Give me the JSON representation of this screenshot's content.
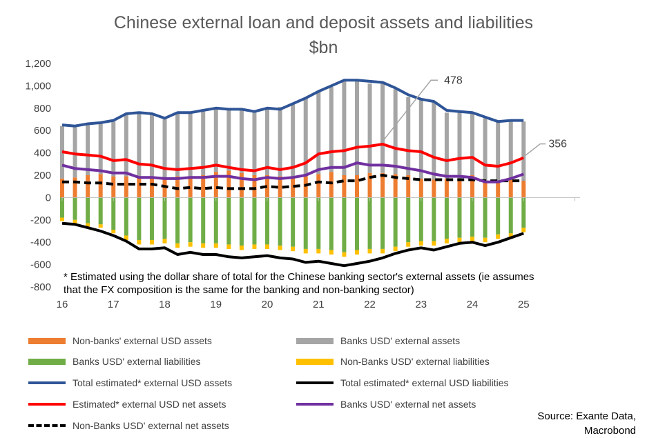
{
  "chart_data": {
    "type": "bar",
    "title": "Chinese external loan and deposit assets and liabilities",
    "subtitle": "$bn",
    "ylim": [
      -800,
      1200
    ],
    "yticks": [
      1200,
      1000,
      800,
      600,
      400,
      200,
      0,
      -200,
      -400,
      -600,
      -800
    ],
    "ytick_labels": [
      "1,200",
      "1,000",
      "800",
      "600",
      "400",
      "200",
      "0",
      "-200",
      "-400",
      "-600",
      "-800"
    ],
    "xtick_labels": [
      "16",
      "17",
      "18",
      "19",
      "20",
      "21",
      "22",
      "23",
      "24",
      "25"
    ],
    "x": [
      2016.0,
      2016.25,
      2016.5,
      2016.75,
      2017.0,
      2017.25,
      2017.5,
      2017.75,
      2018.0,
      2018.25,
      2018.5,
      2018.75,
      2019.0,
      2019.25,
      2019.5,
      2019.75,
      2020.0,
      2020.25,
      2020.5,
      2020.75,
      2021.0,
      2021.25,
      2021.5,
      2021.75,
      2022.0,
      2022.25,
      2022.5,
      2022.75,
      2023.0,
      2023.25,
      2023.5,
      2023.75,
      2024.0,
      2024.25,
      2024.5,
      2024.75,
      2025.0
    ],
    "series": [
      {
        "name": "Non-banks' external USD assets",
        "kind": "bar",
        "color": "#ED7D31",
        "values": [
          170,
          180,
          200,
          210,
          190,
          190,
          190,
          180,
          180,
          190,
          190,
          200,
          230,
          240,
          220,
          200,
          200,
          190,
          180,
          190,
          210,
          230,
          200,
          200,
          220,
          220,
          210,
          200,
          170,
          160,
          170,
          170,
          200,
          150,
          150,
          170,
          150
        ]
      },
      {
        "name": "Banks USD' external assets",
        "kind": "bar",
        "color": "#A5A5A5",
        "values": [
          470,
          450,
          450,
          460,
          490,
          560,
          570,
          570,
          520,
          560,
          560,
          570,
          560,
          550,
          560,
          560,
          600,
          620,
          660,
          700,
          740,
          760,
          850,
          860,
          800,
          810,
          760,
          700,
          710,
          690,
          590,
          600,
          560,
          560,
          530,
          510,
          530
        ]
      },
      {
        "name": "Banks USD' external liabilities",
        "kind": "bar",
        "color": "#70AD47",
        "values": [
          -180,
          -200,
          -230,
          -240,
          -290,
          -340,
          -380,
          -380,
          -370,
          -410,
          -400,
          -410,
          -410,
          -420,
          -430,
          -420,
          -420,
          -430,
          -440,
          -460,
          -460,
          -470,
          -490,
          -470,
          -460,
          -460,
          -440,
          -400,
          -390,
          -390,
          -370,
          -360,
          -350,
          -360,
          -330,
          -320,
          -270
        ]
      },
      {
        "name": "Non-Banks USD' external liabilities",
        "kind": "bar",
        "color": "#FFC000",
        "values": [
          -30,
          -30,
          -30,
          -30,
          -30,
          -40,
          -40,
          -40,
          -40,
          -40,
          -40,
          -40,
          -40,
          -40,
          -40,
          -40,
          -40,
          -40,
          -40,
          -40,
          -40,
          -40,
          -40,
          -40,
          -40,
          -40,
          -40,
          -40,
          -40,
          -40,
          -40,
          -40,
          -40,
          -40,
          -40,
          -40,
          -40
        ]
      },
      {
        "name": "Total estimated* external USD assets",
        "kind": "line",
        "color": "#2F5597",
        "values": [
          650,
          640,
          660,
          670,
          690,
          750,
          760,
          750,
          710,
          760,
          760,
          780,
          800,
          790,
          790,
          770,
          800,
          790,
          840,
          890,
          950,
          1000,
          1050,
          1050,
          1040,
          1030,
          980,
          920,
          880,
          860,
          780,
          770,
          760,
          720,
          680,
          690,
          690
        ]
      },
      {
        "name": "Total estimated* external USD liabilities",
        "kind": "line",
        "color": "#000000",
        "values": [
          -230,
          -240,
          -270,
          -300,
          -340,
          -390,
          -460,
          -460,
          -450,
          -510,
          -490,
          -510,
          -510,
          -530,
          -540,
          -530,
          -520,
          -540,
          -550,
          -580,
          -570,
          -590,
          -610,
          -590,
          -570,
          -540,
          -500,
          -470,
          -450,
          -470,
          -440,
          -410,
          -400,
          -430,
          -400,
          -360,
          -320
        ]
      },
      {
        "name": "Estimated* external USD net assets",
        "kind": "line",
        "color": "#FF0000",
        "values": [
          410,
          390,
          380,
          370,
          330,
          340,
          300,
          290,
          260,
          250,
          260,
          270,
          290,
          270,
          250,
          240,
          270,
          250,
          270,
          310,
          390,
          410,
          420,
          450,
          460,
          478,
          440,
          420,
          410,
          360,
          330,
          350,
          360,
          290,
          280,
          310,
          356
        ]
      },
      {
        "name": "Banks USD' external net assets",
        "kind": "line",
        "color": "#7030A0",
        "values": [
          290,
          260,
          250,
          240,
          220,
          220,
          180,
          180,
          170,
          170,
          180,
          180,
          190,
          190,
          170,
          160,
          180,
          170,
          180,
          200,
          250,
          270,
          270,
          310,
          290,
          290,
          280,
          260,
          240,
          210,
          190,
          190,
          180,
          140,
          140,
          170,
          210
        ]
      },
      {
        "name": "Non-Banks USD' external net assets",
        "kind": "dashed",
        "color": "#000000",
        "values": [
          140,
          140,
          130,
          130,
          120,
          120,
          120,
          120,
          100,
          80,
          90,
          80,
          90,
          80,
          80,
          80,
          100,
          90,
          100,
          110,
          140,
          130,
          150,
          150,
          180,
          200,
          180,
          170,
          160,
          160,
          160,
          160,
          160,
          150,
          150,
          150,
          150
        ]
      }
    ],
    "annotations": [
      {
        "text": "478",
        "series": "Estimated* external USD net assets",
        "x": 2022.25,
        "y": 478
      },
      {
        "text": "356",
        "series": "Estimated* external USD net assets",
        "x": 2025.0,
        "y": 356
      }
    ],
    "note": [
      "* Estimated using the dollar share of total for the Chinese banking sector's external assets (ie assumes",
      "that the FX composition is the same for the banking and non-banking sector)"
    ],
    "source": [
      "Source: Exante Data,",
      "Macrobond"
    ],
    "legend_position": "bottom"
  }
}
